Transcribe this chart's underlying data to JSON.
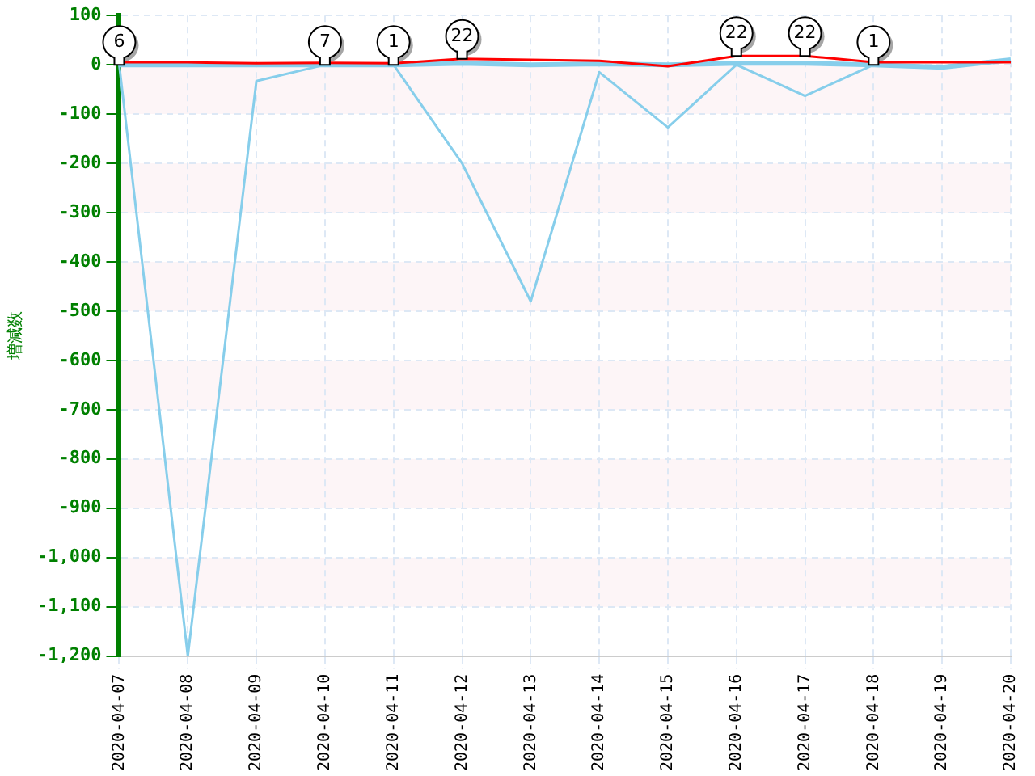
{
  "chart_data": {
    "type": "line",
    "ylabel": "増減数",
    "categories": [
      "2020-04-07",
      "2020-04-08",
      "2020-04-09",
      "2020-04-10",
      "2020-04-11",
      "2020-04-12",
      "2020-04-13",
      "2020-04-14",
      "2020-04-15",
      "2020-04-16",
      "2020-04-17",
      "2020-04-18",
      "2020-04-19",
      "2020-04-20"
    ],
    "series": [
      {
        "color": "#ff0000",
        "values": [
          5,
          5,
          3,
          4,
          3,
          12,
          10,
          8,
          -3,
          18,
          18,
          5,
          5,
          5
        ]
      },
      {
        "color": "#87ceeb",
        "values": [
          0,
          0,
          0,
          0,
          0,
          3,
          0,
          2,
          0,
          3,
          3,
          0,
          -5,
          10
        ]
      },
      {
        "color": "#87ceeb",
        "values": [
          0,
          -1200,
          -33,
          0,
          0,
          -200,
          -480,
          -15,
          -127,
          0,
          -63,
          0,
          null,
          null
        ]
      }
    ],
    "ylim": [
      -1200,
      100
    ],
    "yticks": [
      {
        "value": -1200,
        "label": "-1,200"
      },
      {
        "value": -1100,
        "label": "-1,100"
      },
      {
        "value": -1000,
        "label": "-1,000"
      },
      -900,
      -800,
      -700,
      -600,
      -500,
      -400,
      -300,
      -200,
      -100,
      0,
      100
    ],
    "bands": [
      {
        "axis": "y",
        "from": -100,
        "to": 0,
        "color": "#fdf5f7"
      },
      {
        "axis": "y",
        "from": -300,
        "to": -200,
        "color": "#fdf5f7"
      },
      {
        "axis": "y",
        "from": -500,
        "to": -400,
        "color": "#fdf5f7"
      },
      {
        "axis": "y",
        "from": -700,
        "to": -600,
        "color": "#fdf5f7"
      },
      {
        "axis": "y",
        "from": -900,
        "to": -800,
        "color": "#fdf5f7"
      },
      {
        "axis": "y",
        "from": -1100,
        "to": -1000,
        "color": "#fdf5f7"
      }
    ],
    "annotations": [
      {
        "text": "6",
        "x": "2020-04-07",
        "y": 0
      },
      {
        "text": "7",
        "x": "2020-04-10",
        "y": 0
      },
      {
        "text": "1",
        "x": "2020-04-11",
        "y": 0
      },
      {
        "text": "22",
        "x": "2020-04-12",
        "y": 12
      },
      {
        "text": "22",
        "x": "2020-04-16",
        "y": 18
      },
      {
        "text": "22",
        "x": "2020-04-17",
        "y": 18
      },
      {
        "text": "1",
        "x": "2020-04-18",
        "y": 0
      }
    ],
    "grid": true,
    "legend": false,
    "marker": "none",
    "line_style": "solid"
  }
}
